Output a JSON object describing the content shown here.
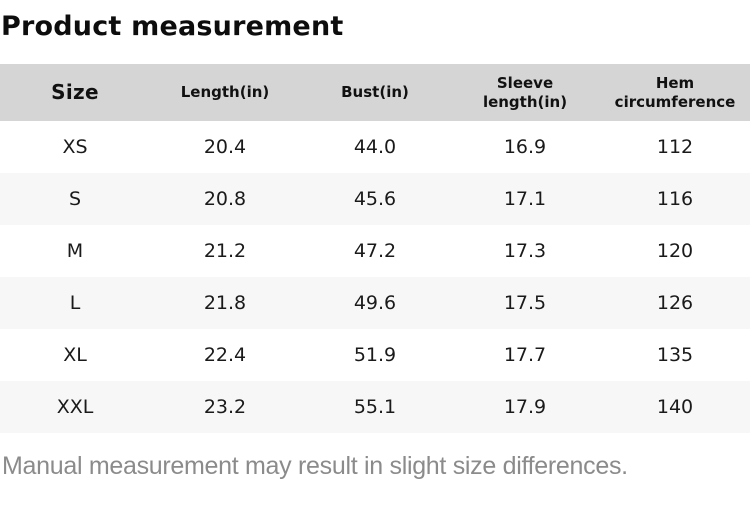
{
  "title": "Product measurement",
  "footnote": "Manual measurement may result in slight size differences.",
  "colors": {
    "header_bg": "#d5d5d5",
    "stripe_bg": "#f7f7f7",
    "row_bg": "#ffffff",
    "title_text": "#0d0d0d",
    "cell_text": "#1a1a1a",
    "footnote_text": "#8b8b8b"
  },
  "table": {
    "columns": [
      {
        "key": "size",
        "label": "Size"
      },
      {
        "key": "length",
        "label": "Length(in)"
      },
      {
        "key": "bust",
        "label": "Bust(in)"
      },
      {
        "key": "sleeve-length",
        "label": "Sleeve\nlength(in)"
      },
      {
        "key": "hem-circumference",
        "label": "Hem\ncircumference"
      }
    ],
    "rows": [
      [
        "XS",
        "20.4",
        "44.0",
        "16.9",
        "112"
      ],
      [
        "S",
        "20.8",
        "45.6",
        "17.1",
        "116"
      ],
      [
        "M",
        "21.2",
        "47.2",
        "17.3",
        "120"
      ],
      [
        "L",
        "21.8",
        "49.6",
        "17.5",
        "126"
      ],
      [
        "XL",
        "22.4",
        "51.9",
        "17.7",
        "135"
      ],
      [
        "XXL",
        "23.2",
        "55.1",
        "17.9",
        "140"
      ]
    ]
  }
}
